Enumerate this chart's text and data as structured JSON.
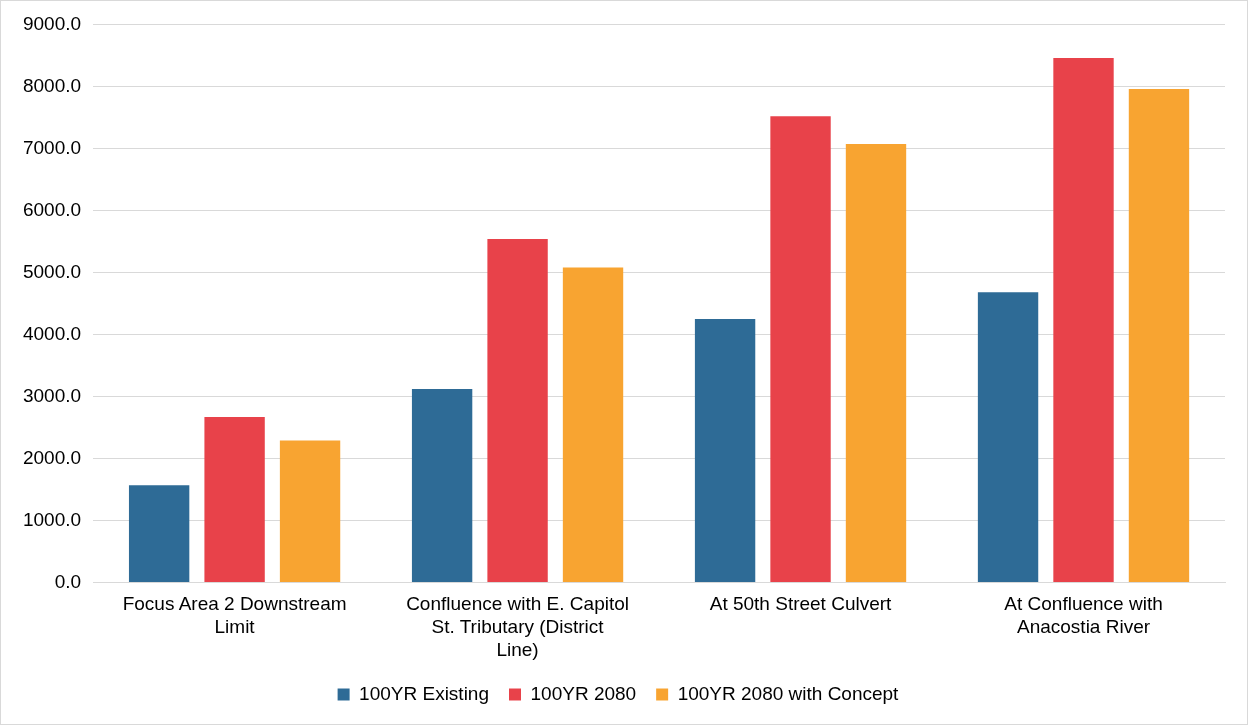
{
  "chart_data": {
    "type": "bar",
    "categories": [
      "Focus Area 2 Downstream Limit",
      "Confluence with E. Capitol St. Tributary (District Line)",
      "At 50th Street Culvert",
      "At Confluence with Anacostia River"
    ],
    "series": [
      {
        "name": "100YR Existing",
        "color": "#2e6b96",
        "values": [
          1570,
          3120,
          4250,
          4680
        ]
      },
      {
        "name": "100YR 2080",
        "color": "#e8424a",
        "values": [
          2670,
          5540,
          7520,
          8460
        ]
      },
      {
        "name": "100YR 2080 with Concept",
        "color": "#f8a431",
        "values": [
          2290,
          5080,
          7070,
          7960
        ]
      }
    ],
    "ylim": [
      0,
      9000
    ],
    "yticks": [
      {
        "value": 0,
        "label": "0.0"
      },
      {
        "value": 1000,
        "label": "1000.0"
      },
      {
        "value": 2000,
        "label": "2000.0"
      },
      {
        "value": 3000,
        "label": "3000.0"
      },
      {
        "value": 4000,
        "label": "4000.0"
      },
      {
        "value": 5000,
        "label": "5000.0"
      },
      {
        "value": 6000,
        "label": "6000.0"
      },
      {
        "value": 7000,
        "label": "7000.0"
      },
      {
        "value": 8000,
        "label": "8000.0"
      },
      {
        "value": 9000,
        "label": "9000.0"
      }
    ],
    "grid": "y",
    "legend": "bottom"
  }
}
